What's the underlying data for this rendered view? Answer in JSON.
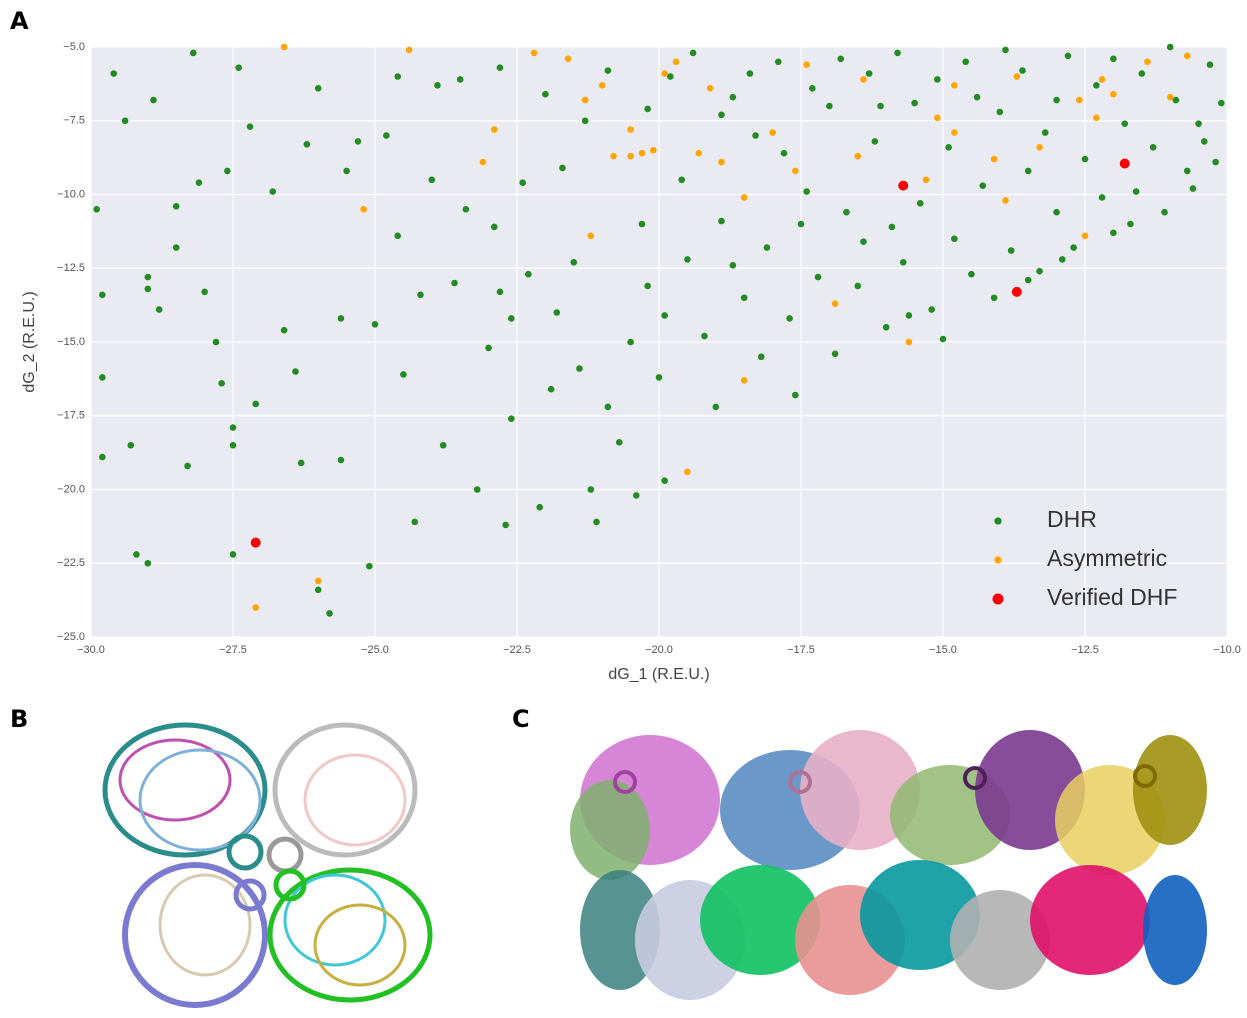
{
  "chart_data": {
    "type": "scatter",
    "x_label": "dG_1 (R.E.U.)",
    "y_label": "dG_2 (R.E.U.)",
    "xlim": [
      -30,
      -10
    ],
    "ylim": [
      -25,
      -5
    ],
    "xticks": [
      {
        "value": -30,
        "label": "−30.0"
      },
      {
        "value": -27.5,
        "label": "−27.5"
      },
      {
        "value": -25,
        "label": "−25.0"
      },
      {
        "value": -22.5,
        "label": "−22.5"
      },
      {
        "value": -20,
        "label": "−20.0"
      },
      {
        "value": -17.5,
        "label": "−17.5"
      },
      {
        "value": -15,
        "label": "−15.0"
      },
      {
        "value": -12.5,
        "label": "−12.5"
      },
      {
        "value": -10,
        "label": "−10.0"
      }
    ],
    "yticks": [
      {
        "value": -5,
        "label": "−5.0"
      },
      {
        "value": -7.5,
        "label": "−7.5"
      },
      {
        "value": -10,
        "label": "−10.0"
      },
      {
        "value": -12.5,
        "label": "−12.5"
      },
      {
        "value": -15,
        "label": "−15.0"
      },
      {
        "value": -17.5,
        "label": "−17.5"
      },
      {
        "value": -20,
        "label": "−20.0"
      },
      {
        "value": -22.5,
        "label": "−22.5"
      },
      {
        "value": -25,
        "label": "−25.0"
      }
    ],
    "grid": true,
    "legend": "lower right",
    "series": [
      {
        "name": "DHR",
        "color": "#228b22",
        "x": [
          -29.9,
          -29.8,
          -29.8,
          -29.8,
          -29.3,
          -29.2,
          -29.0,
          -28.9,
          -28.8,
          -29.4,
          -29.6,
          -29.0,
          -29.0,
          -28.5,
          -28.5,
          -28.3,
          -28.1,
          -28.2,
          -28.0,
          -27.8,
          -27.7,
          -27.5,
          -27.5,
          -27.5,
          -27.6,
          -27.4,
          -27.2,
          -27.1,
          -26.8,
          -26.6,
          -26.4,
          -26.3,
          -26.2,
          -26.0,
          -26.0,
          -25.8,
          -25.6,
          -25.6,
          -25.5,
          -25.3,
          -25.1,
          -25.0,
          -24.8,
          -24.6,
          -24.5,
          -24.3,
          -24.2,
          -24.0,
          -23.8,
          -23.6,
          -23.5,
          -23.4,
          -23.2,
          -23.0,
          -22.9,
          -22.8,
          -22.7,
          -22.6,
          -22.4,
          -22.3,
          -22.1,
          -21.9,
          -21.8,
          -21.5,
          -21.3,
          -21.2,
          -21.1,
          -20.9,
          -20.7,
          -20.5,
          -20.4,
          -20.3,
          -20.2,
          -20.0,
          -19.9,
          -19.8,
          -19.6,
          -19.5,
          -19.2,
          -19.0,
          -18.9,
          -18.7,
          -18.5,
          -18.3,
          -18.2,
          -18.1,
          -17.9,
          -17.7,
          -17.6,
          -17.4,
          -17.2,
          -17.0,
          -16.9,
          -16.7,
          -16.5,
          -16.3,
          -16.2,
          -16.0,
          -15.9,
          -15.7,
          -15.5,
          -15.4,
          -15.2,
          -15.0,
          -14.9,
          -14.8,
          -14.6,
          -14.5,
          -14.3,
          -14.1,
          -14.0,
          -13.8,
          -13.6,
          -13.5,
          -13.3,
          -13.2,
          -13.0,
          -12.8,
          -12.7,
          -12.5,
          -12.3,
          -12.2,
          -12.0,
          -11.8,
          -11.6,
          -11.5,
          -11.3,
          -11.1,
          -10.9,
          -10.7,
          -10.5,
          -10.3,
          -10.2,
          -10.1,
          -24.6,
          -23.9,
          -22.8,
          -22.0,
          -21.7,
          -20.9,
          -20.2,
          -19.4,
          -18.9,
          -18.4,
          -17.8,
          -17.3,
          -16.8,
          -16.1,
          -15.8,
          -15.1,
          -14.4,
          -13.9,
          -13.0,
          -12.0,
          -11.0,
          -10.4,
          -22.6,
          -21.4,
          -19.9,
          -18.7,
          -17.5,
          -16.4,
          -15.6,
          -13.5,
          -12.9,
          -11.7,
          -10.6
        ],
        "values": [
          -10.5,
          -13.4,
          -16.2,
          -18.9,
          -18.5,
          -22.2,
          -22.5,
          -6.8,
          -13.9,
          -7.5,
          -5.9,
          -12.8,
          -13.2,
          -10.4,
          -11.8,
          -19.2,
          -9.6,
          -5.2,
          -13.3,
          -15.0,
          -16.4,
          -17.9,
          -18.5,
          -22.2,
          -9.2,
          -5.7,
          -7.7,
          -17.1,
          -9.9,
          -14.6,
          -16.0,
          -19.1,
          -8.3,
          -6.4,
          -23.4,
          -24.2,
          -19.0,
          -14.2,
          -9.2,
          -8.2,
          -22.6,
          -14.4,
          -8.0,
          -11.4,
          -16.1,
          -21.1,
          -13.4,
          -9.5,
          -18.5,
          -13.0,
          -6.1,
          -10.5,
          -20.0,
          -15.2,
          -11.1,
          -13.3,
          -21.2,
          -17.6,
          -9.6,
          -12.7,
          -20.6,
          -16.6,
          -14.0,
          -12.3,
          -7.5,
          -20.0,
          -21.1,
          -17.2,
          -18.4,
          -15.0,
          -20.2,
          -11.0,
          -13.1,
          -16.2,
          -19.7,
          -6.0,
          -9.5,
          -12.2,
          -14.8,
          -17.2,
          -10.9,
          -6.7,
          -13.5,
          -8.0,
          -15.5,
          -11.8,
          -5.5,
          -14.2,
          -16.8,
          -9.9,
          -12.8,
          -7.0,
          -15.4,
          -10.6,
          -13.1,
          -5.9,
          -8.2,
          -14.5,
          -11.1,
          -12.3,
          -6.9,
          -10.3,
          -13.9,
          -14.9,
          -8.4,
          -11.5,
          -5.5,
          -12.7,
          -9.7,
          -13.5,
          -7.2,
          -11.9,
          -5.8,
          -9.2,
          -12.6,
          -7.9,
          -10.6,
          -5.3,
          -11.8,
          -8.8,
          -6.3,
          -10.1,
          -11.3,
          -7.6,
          -9.9,
          -5.9,
          -8.4,
          -10.6,
          -6.8,
          -9.2,
          -7.6,
          -5.6,
          -8.9,
          -6.9,
          -6.0,
          -6.3,
          -5.7,
          -6.6,
          -9.1,
          -5.8,
          -7.1,
          -5.2,
          -7.3,
          -5.9,
          -8.6,
          -6.4,
          -5.4,
          -7.0,
          -5.2,
          -6.1,
          -6.7,
          -5.1,
          -6.8,
          -5.4,
          -5.0,
          -8.2,
          -14.2,
          -15.9,
          -14.1,
          -12.4,
          -11.0,
          -11.6,
          -14.1,
          -12.9,
          -12.2,
          -11.0,
          -9.8
        ]
      },
      {
        "name": "Asymmetric",
        "color": "#ffa500",
        "x": [
          -27.1,
          -26.0,
          -25.2,
          -22.9,
          -23.1,
          -21.2,
          -20.5,
          -20.5,
          -20.8,
          -20.1,
          -19.5,
          -18.5,
          -18.5,
          -16.9,
          -15.6,
          -15.3,
          -14.1,
          -13.9,
          -12.5,
          -13.3,
          -12.3,
          -12.0,
          -11.0,
          -10.7,
          -12.2,
          -13.7,
          -15.1,
          -16.5,
          -17.6,
          -18.0,
          -19.1,
          -19.7,
          -19.9,
          -21.3,
          -21.0,
          -21.6,
          -22.2,
          -24.4,
          -26.6,
          -14.8,
          -16.4,
          -18.9,
          -19.3,
          -20.3,
          -14.8,
          -17.4,
          -12.6,
          -11.4
        ],
        "values": [
          -24.0,
          -23.1,
          -10.5,
          -7.8,
          -8.9,
          -11.4,
          -7.8,
          -8.7,
          -8.7,
          -8.5,
          -19.4,
          -16.3,
          -10.1,
          -13.7,
          -15.0,
          -9.5,
          -8.8,
          -10.2,
          -11.4,
          -8.4,
          -7.4,
          -6.6,
          -6.7,
          -5.3,
          -6.1,
          -6.0,
          -7.4,
          -8.7,
          -9.2,
          -7.9,
          -6.4,
          -5.5,
          -5.9,
          -6.8,
          -6.3,
          -5.4,
          -5.2,
          -5.1,
          -5.0,
          -6.3,
          -6.1,
          -8.9,
          -8.6,
          -8.6,
          -7.9,
          -5.6,
          -6.8,
          -5.5
        ]
      },
      {
        "name": "Verified DHF",
        "color": "#ff0000",
        "x": [
          -27.1,
          -15.7,
          -13.7,
          -11.8
        ],
        "values": [
          -21.8,
          -9.7,
          -13.3,
          -8.95
        ]
      }
    ]
  },
  "panel_labels": [
    "A",
    "B",
    "C"
  ]
}
